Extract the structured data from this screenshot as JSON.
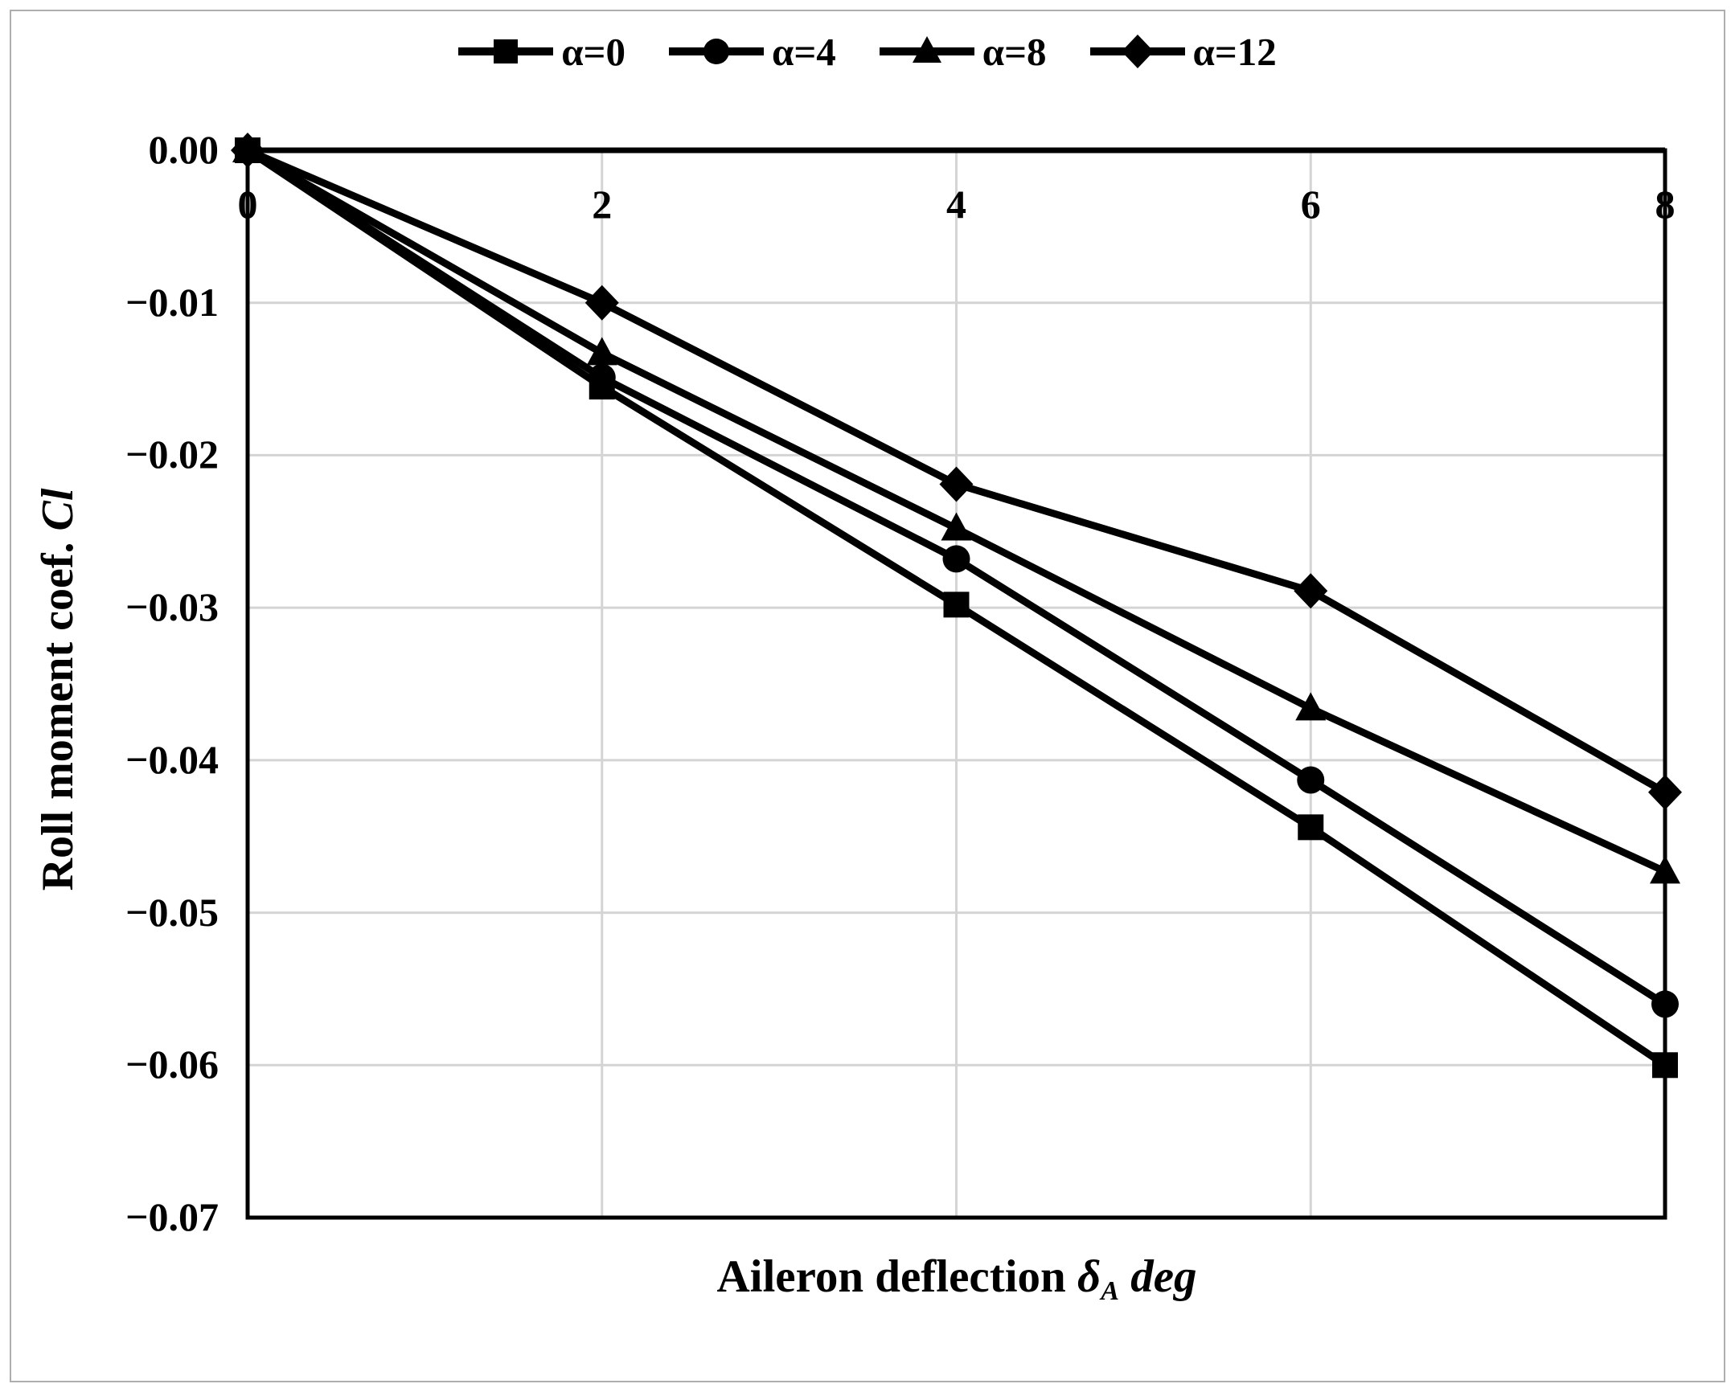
{
  "figure": {
    "background": "#ffffff",
    "frame_color": "#aeaeae",
    "line_color": "#000000",
    "grid_color": "#d4d4d4"
  },
  "chart_data": {
    "type": "line",
    "title": "",
    "xlabel": "Aileron deflection δA deg",
    "ylabel": "Roll moment coef. Cl",
    "x": [
      0,
      2,
      4,
      6,
      8
    ],
    "series": [
      {
        "name": "α=0",
        "marker": "square",
        "values": [
          0,
          -0.0155,
          -0.0298,
          -0.0444,
          -0.06
        ]
      },
      {
        "name": "α=4",
        "marker": "circle",
        "values": [
          0,
          -0.0149,
          -0.0268,
          -0.0413,
          -0.056
        ]
      },
      {
        "name": "α=8",
        "marker": "triangle",
        "values": [
          0,
          -0.0133,
          -0.0248,
          -0.0366,
          -0.0473
        ]
      },
      {
        "name": "α=12",
        "marker": "diamond",
        "values": [
          0,
          -0.01,
          -0.0219,
          -0.0289,
          -0.0421
        ]
      }
    ],
    "xlim": [
      0,
      8
    ],
    "ylim": [
      -0.07,
      0
    ],
    "xticks": [
      0,
      2,
      4,
      6,
      8
    ],
    "xtick_labels": [
      "0",
      "2",
      "4",
      "6",
      "8"
    ],
    "ytick_values": [
      0,
      -0.01,
      -0.02,
      -0.03,
      -0.04,
      -0.05,
      -0.06,
      -0.07
    ],
    "ytick_labels": [
      "0.00",
      "−0.01",
      "−0.02",
      "−0.03",
      "−0.04",
      "−0.05",
      "−0.06",
      "−0.07"
    ],
    "grid": true,
    "legend_position": "top"
  },
  "axis_titles": {
    "x_main": "Aileron deflection ",
    "x_symbol": "δ",
    "x_sub": "A",
    "x_unit": " deg",
    "y_main": "Roll moment coef. ",
    "y_symbol": "Cl"
  }
}
